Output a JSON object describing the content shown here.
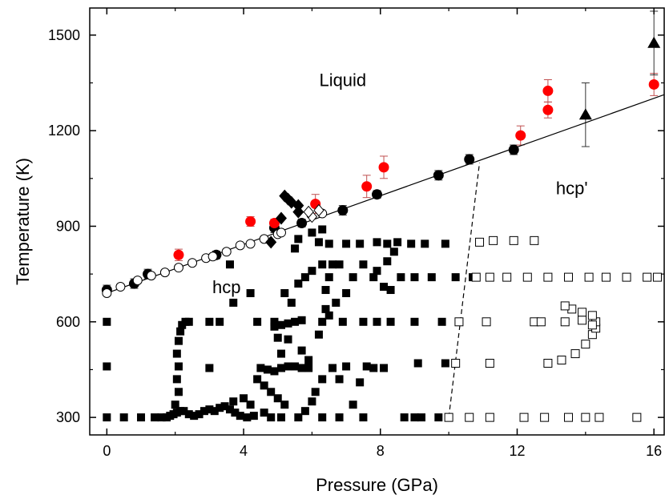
{
  "chart_data": {
    "type": "scatter",
    "xlabel": "Pressure (GPa)",
    "ylabel": "Temperature (K)",
    "xlim": [
      -0.5,
      16.3
    ],
    "ylim": [
      245,
      1585
    ],
    "xticks": [
      {
        "v": 0,
        "label": "0"
      },
      {
        "v": 4,
        "label": "4"
      },
      {
        "v": 8,
        "label": "8"
      },
      {
        "v": 12,
        "label": "12"
      },
      {
        "v": 16,
        "label": "16"
      }
    ],
    "yticks": [
      {
        "v": 300,
        "label": "300"
      },
      {
        "v": 600,
        "label": "600"
      },
      {
        "v": 900,
        "label": "900"
      },
      {
        "v": 1200,
        "label": "1200"
      },
      {
        "v": 1500,
        "label": "1500"
      }
    ],
    "grid": false,
    "colors": {
      "black": "#000000",
      "red": "#ff0000",
      "errorbar_red": "#c05050"
    },
    "annotations": [
      {
        "text": "Liquid",
        "x": 6.9,
        "y": 1340
      },
      {
        "text": "hcp'",
        "x": 13.6,
        "y": 1000
      },
      {
        "text": "hcp",
        "x": 3.5,
        "y": 690
      }
    ],
    "lines": [
      {
        "style": "solid",
        "points": [
          [
            0,
            690
          ],
          [
            16.3,
            1313
          ]
        ]
      },
      {
        "style": "dashed",
        "points": [
          [
            10,
            300
          ],
          [
            10.9,
            1100
          ]
        ]
      }
    ],
    "series": [
      {
        "marker": "circle-filled",
        "color": "#000000",
        "points": [
          [
            0,
            700,
            15
          ],
          [
            0.8,
            720,
            15
          ],
          [
            1.2,
            750,
            15
          ],
          [
            3.2,
            810,
            12
          ],
          [
            4.9,
            895,
            15
          ],
          [
            5.7,
            910,
            12
          ],
          [
            6.9,
            950,
            15
          ],
          [
            7.9,
            1000,
            12
          ],
          [
            9.7,
            1060,
            15
          ],
          [
            10.6,
            1110,
            15
          ],
          [
            11.9,
            1140,
            15
          ]
        ]
      },
      {
        "marker": "circle-filled",
        "color": "#ff0000",
        "points": [
          [
            2.1,
            810,
            18
          ],
          [
            4.2,
            915,
            15
          ],
          [
            4.9,
            910,
            12
          ],
          [
            6.1,
            970,
            30
          ],
          [
            7.6,
            1025,
            35
          ],
          [
            8.1,
            1085,
            35
          ],
          [
            12.1,
            1185,
            30
          ],
          [
            12.9,
            1265,
            25
          ],
          [
            12.9,
            1325,
            35
          ],
          [
            16,
            1345,
            35
          ]
        ]
      },
      {
        "marker": "triangle-filled",
        "color": "#000000",
        "points": [
          [
            14,
            1250,
            100
          ],
          [
            16,
            1475,
            100
          ]
        ]
      },
      {
        "marker": "circle-open",
        "color": "#000000",
        "points": [
          [
            0,
            690
          ],
          [
            0.4,
            710
          ],
          [
            0.9,
            730
          ],
          [
            1.3,
            745
          ],
          [
            1.7,
            755
          ],
          [
            2.1,
            770
          ],
          [
            2.5,
            785
          ],
          [
            2.9,
            800
          ],
          [
            3.1,
            805
          ],
          [
            3.5,
            820
          ],
          [
            3.9,
            840
          ],
          [
            4.2,
            845
          ],
          [
            4.6,
            860
          ],
          [
            5,
            875
          ],
          [
            5.1,
            880
          ],
          [
            6.3,
            940
          ]
        ]
      },
      {
        "marker": "diamond-filled",
        "color": "#000000",
        "points": [
          [
            4.8,
            850
          ],
          [
            5.1,
            925
          ],
          [
            5.2,
            995
          ],
          [
            5.3,
            985
          ],
          [
            5.4,
            975
          ],
          [
            5.6,
            965
          ],
          [
            5.6,
            945
          ]
        ]
      },
      {
        "marker": "diamond-open",
        "color": "#000000",
        "points": [
          [
            6.0,
            930
          ],
          [
            6.2,
            950
          ],
          [
            5.9,
            945
          ]
        ]
      },
      {
        "marker": "square-filled",
        "color": "#000000",
        "points": [
          [
            0,
            300
          ],
          [
            0.5,
            300
          ],
          [
            1.0,
            300
          ],
          [
            1.4,
            300
          ],
          [
            1.6,
            300
          ],
          [
            1.75,
            300
          ],
          [
            1.85,
            305
          ],
          [
            1.95,
            310
          ],
          [
            2.05,
            315
          ],
          [
            2.15,
            320
          ],
          [
            2.25,
            320
          ],
          [
            2.4,
            310
          ],
          [
            2.55,
            305
          ],
          [
            2.7,
            310
          ],
          [
            2.85,
            320
          ],
          [
            3.0,
            325
          ],
          [
            3.15,
            320
          ],
          [
            3.3,
            330
          ],
          [
            3.45,
            335
          ],
          [
            3.6,
            325
          ],
          [
            3.75,
            315
          ],
          [
            3.9,
            305
          ],
          [
            4.1,
            300
          ],
          [
            4.3,
            305
          ],
          [
            4.6,
            315
          ],
          [
            4.8,
            300
          ],
          [
            5.1,
            300
          ],
          [
            5.6,
            300
          ],
          [
            6.3,
            300
          ],
          [
            6.8,
            300
          ],
          [
            7.5,
            300
          ],
          [
            8.7,
            300
          ],
          [
            9.0,
            300
          ],
          [
            9.2,
            300
          ],
          [
            9.7,
            300
          ],
          [
            2.0,
            340
          ],
          [
            2.1,
            380
          ],
          [
            2.05,
            420
          ],
          [
            2.1,
            460
          ],
          [
            2.05,
            500
          ],
          [
            2.1,
            540
          ],
          [
            2.15,
            570
          ],
          [
            2.2,
            590
          ],
          [
            2.3,
            600
          ],
          [
            2.4,
            600
          ],
          [
            3.0,
            600
          ],
          [
            3.3,
            600
          ],
          [
            4.4,
            600
          ],
          [
            4.9,
            585
          ],
          [
            5.1,
            590
          ],
          [
            5.3,
            595
          ],
          [
            5.5,
            600
          ],
          [
            5.7,
            605
          ],
          [
            6.3,
            600
          ],
          [
            6.9,
            600
          ],
          [
            7.5,
            600
          ],
          [
            7.9,
            600
          ],
          [
            8.3,
            600
          ],
          [
            9.0,
            600
          ],
          [
            9.8,
            600
          ],
          [
            0,
            600
          ],
          [
            0,
            460
          ],
          [
            3.0,
            455
          ],
          [
            4.5,
            455
          ],
          [
            4.7,
            450
          ],
          [
            4.9,
            445
          ],
          [
            5.1,
            455
          ],
          [
            5.3,
            460
          ],
          [
            5.5,
            460
          ],
          [
            5.7,
            455
          ],
          [
            5.9,
            455
          ],
          [
            6.6,
            455
          ],
          [
            7.0,
            460
          ],
          [
            7.6,
            460
          ],
          [
            7.8,
            455
          ],
          [
            8.1,
            455
          ],
          [
            9.1,
            470
          ],
          [
            9.9,
            470
          ],
          [
            4.4,
            420
          ],
          [
            4.6,
            400
          ],
          [
            4.8,
            380
          ],
          [
            5.0,
            360
          ],
          [
            5.2,
            340
          ],
          [
            4.0,
            360
          ],
          [
            4.2,
            340
          ],
          [
            3.7,
            350
          ],
          [
            5.3,
            545
          ],
          [
            5.7,
            510
          ],
          [
            5.9,
            480
          ],
          [
            6.3,
            420
          ],
          [
            6.1,
            380
          ],
          [
            6.8,
            420
          ],
          [
            7.4,
            410
          ],
          [
            6.0,
            350
          ],
          [
            5.8,
            320
          ],
          [
            7.2,
            340
          ],
          [
            4.9,
            600
          ],
          [
            5.0,
            550
          ],
          [
            5.1,
            500
          ],
          [
            6.2,
            560
          ],
          [
            6.5,
            620
          ],
          [
            6.7,
            660
          ],
          [
            7.0,
            690
          ],
          [
            6.4,
            700
          ],
          [
            6.5,
            740
          ],
          [
            6.6,
            780
          ],
          [
            6.4,
            640
          ],
          [
            8.1,
            710
          ],
          [
            7.8,
            740
          ],
          [
            8.6,
            740
          ],
          [
            9.0,
            740
          ],
          [
            9.5,
            740
          ],
          [
            10.2,
            740
          ],
          [
            10.7,
            740
          ],
          [
            7.2,
            740
          ],
          [
            8.3,
            700
          ],
          [
            5.8,
            740
          ],
          [
            6.0,
            760
          ],
          [
            6.3,
            780
          ],
          [
            5.6,
            720
          ],
          [
            5.2,
            690
          ],
          [
            5.4,
            660
          ],
          [
            4.2,
            690
          ],
          [
            3.7,
            660
          ],
          [
            3.6,
            780
          ],
          [
            5.5,
            830
          ],
          [
            5.6,
            860
          ],
          [
            6.0,
            880
          ],
          [
            6.3,
            890
          ],
          [
            6.2,
            850
          ],
          [
            6.5,
            845
          ],
          [
            7.0,
            845
          ],
          [
            7.4,
            845
          ],
          [
            7.9,
            850
          ],
          [
            8.2,
            845
          ],
          [
            8.5,
            850
          ],
          [
            8.9,
            845
          ],
          [
            9.3,
            845
          ],
          [
            9.9,
            845
          ],
          [
            6.8,
            780
          ],
          [
            7.5,
            780
          ],
          [
            7.9,
            760
          ],
          [
            8.2,
            790
          ],
          [
            8.4,
            820
          ]
        ]
      },
      {
        "marker": "square-open",
        "color": "#000000",
        "points": [
          [
            10.0,
            300
          ],
          [
            10.6,
            300
          ],
          [
            11.2,
            300
          ],
          [
            12.2,
            300
          ],
          [
            12.8,
            300
          ],
          [
            13.5,
            300
          ],
          [
            14.0,
            300
          ],
          [
            14.4,
            300
          ],
          [
            15.5,
            300
          ],
          [
            10.2,
            470
          ],
          [
            11.2,
            470
          ],
          [
            12.9,
            470
          ],
          [
            13.3,
            480
          ],
          [
            13.7,
            500
          ],
          [
            14.0,
            530
          ],
          [
            14.2,
            560
          ],
          [
            14.3,
            580
          ],
          [
            14.3,
            600
          ],
          [
            14.2,
            620
          ],
          [
            13.9,
            630
          ],
          [
            13.6,
            640
          ],
          [
            13.4,
            650
          ],
          [
            10.3,
            600
          ],
          [
            11.1,
            600
          ],
          [
            12.5,
            600
          ],
          [
            12.7,
            600
          ],
          [
            13.4,
            600
          ],
          [
            13.9,
            605
          ],
          [
            14.2,
            590
          ],
          [
            10.8,
            740
          ],
          [
            11.2,
            740
          ],
          [
            11.7,
            740
          ],
          [
            12.3,
            740
          ],
          [
            12.9,
            740
          ],
          [
            13.5,
            740
          ],
          [
            14.1,
            740
          ],
          [
            14.6,
            740
          ],
          [
            15.2,
            740
          ],
          [
            15.8,
            740
          ],
          [
            16.1,
            740
          ],
          [
            10.9,
            850
          ],
          [
            11.3,
            855
          ],
          [
            11.9,
            855
          ],
          [
            12.5,
            855
          ]
        ]
      }
    ]
  }
}
